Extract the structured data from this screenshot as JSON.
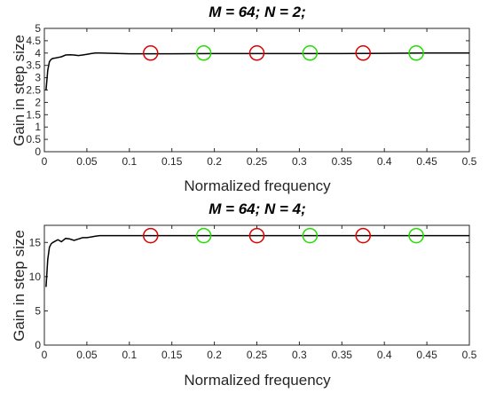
{
  "chart_data": [
    {
      "type": "line",
      "title": "M = 64; N = 2;",
      "xlabel": "Normalized frequency",
      "ylabel": "Gain in step size",
      "xlim": [
        0,
        0.5
      ],
      "ylim": [
        0,
        5
      ],
      "xticks": [
        "0",
        "0.05",
        "0.1",
        "0.15",
        "0.2",
        "0.25",
        "0.3",
        "0.35",
        "0.4",
        "0.45",
        "0.5"
      ],
      "yticks": [
        "0",
        "0.5",
        "1",
        "1.5",
        "2",
        "2.5",
        "3",
        "3.5",
        "4",
        "4.5",
        "5"
      ],
      "grid": false,
      "series": [
        {
          "color": "#000000",
          "x": [
            0.002,
            0.004,
            0.006,
            0.008,
            0.01,
            0.013,
            0.016,
            0.02,
            0.025,
            0.03,
            0.035,
            0.04,
            0.045,
            0.05,
            0.055,
            0.06,
            0.065,
            0.08,
            0.1,
            0.15,
            0.2,
            0.25,
            0.3,
            0.35,
            0.4,
            0.45,
            0.5
          ],
          "y": [
            2.5,
            3.3,
            3.65,
            3.75,
            3.78,
            3.8,
            3.82,
            3.85,
            3.92,
            3.93,
            3.92,
            3.9,
            3.92,
            3.95,
            3.98,
            4.0,
            4.0,
            3.99,
            3.97,
            3.97,
            3.98,
            3.98,
            3.98,
            3.98,
            3.99,
            4.0,
            4.0
          ]
        }
      ],
      "markers": [
        {
          "x": 0.125,
          "y": 4.0,
          "color": "#dd0000"
        },
        {
          "x": 0.1875,
          "y": 4.0,
          "color": "#22dd00"
        },
        {
          "x": 0.25,
          "y": 4.0,
          "color": "#dd0000"
        },
        {
          "x": 0.3125,
          "y": 4.0,
          "color": "#22dd00"
        },
        {
          "x": 0.375,
          "y": 4.0,
          "color": "#dd0000"
        },
        {
          "x": 0.4375,
          "y": 4.0,
          "color": "#22dd00"
        }
      ]
    },
    {
      "type": "line",
      "title": "M = 64; N = 4;",
      "xlabel": "Normalized frequency",
      "ylabel": "Gain in step size",
      "xlim": [
        0,
        0.5
      ],
      "ylim": [
        0,
        17.5
      ],
      "xticks": [
        "0",
        "0.05",
        "0.1",
        "0.15",
        "0.2",
        "0.25",
        "0.3",
        "0.35",
        "0.4",
        "0.45",
        "0.5"
      ],
      "yticks": [
        "0",
        "5",
        "10",
        "15"
      ],
      "grid": false,
      "series": [
        {
          "color": "#000000",
          "x": [
            0.002,
            0.004,
            0.006,
            0.008,
            0.01,
            0.013,
            0.016,
            0.02,
            0.025,
            0.03,
            0.035,
            0.04,
            0.045,
            0.05,
            0.055,
            0.06,
            0.065,
            0.08,
            0.1,
            0.15,
            0.2,
            0.25,
            0.3,
            0.35,
            0.4,
            0.45,
            0.5
          ],
          "y": [
            8.5,
            12.5,
            14.3,
            14.8,
            15.0,
            15.2,
            15.4,
            15.1,
            15.6,
            15.5,
            15.3,
            15.5,
            15.7,
            15.7,
            15.8,
            15.9,
            16.0,
            16.0,
            16.0,
            16.0,
            16.0,
            16.0,
            16.0,
            16.0,
            16.0,
            16.0,
            16.0
          ]
        }
      ],
      "markers": [
        {
          "x": 0.125,
          "y": 16.0,
          "color": "#dd0000"
        },
        {
          "x": 0.1875,
          "y": 16.0,
          "color": "#22dd00"
        },
        {
          "x": 0.25,
          "y": 16.0,
          "color": "#dd0000"
        },
        {
          "x": 0.3125,
          "y": 16.0,
          "color": "#22dd00"
        },
        {
          "x": 0.375,
          "y": 16.0,
          "color": "#dd0000"
        },
        {
          "x": 0.4375,
          "y": 16.0,
          "color": "#22dd00"
        }
      ]
    }
  ]
}
